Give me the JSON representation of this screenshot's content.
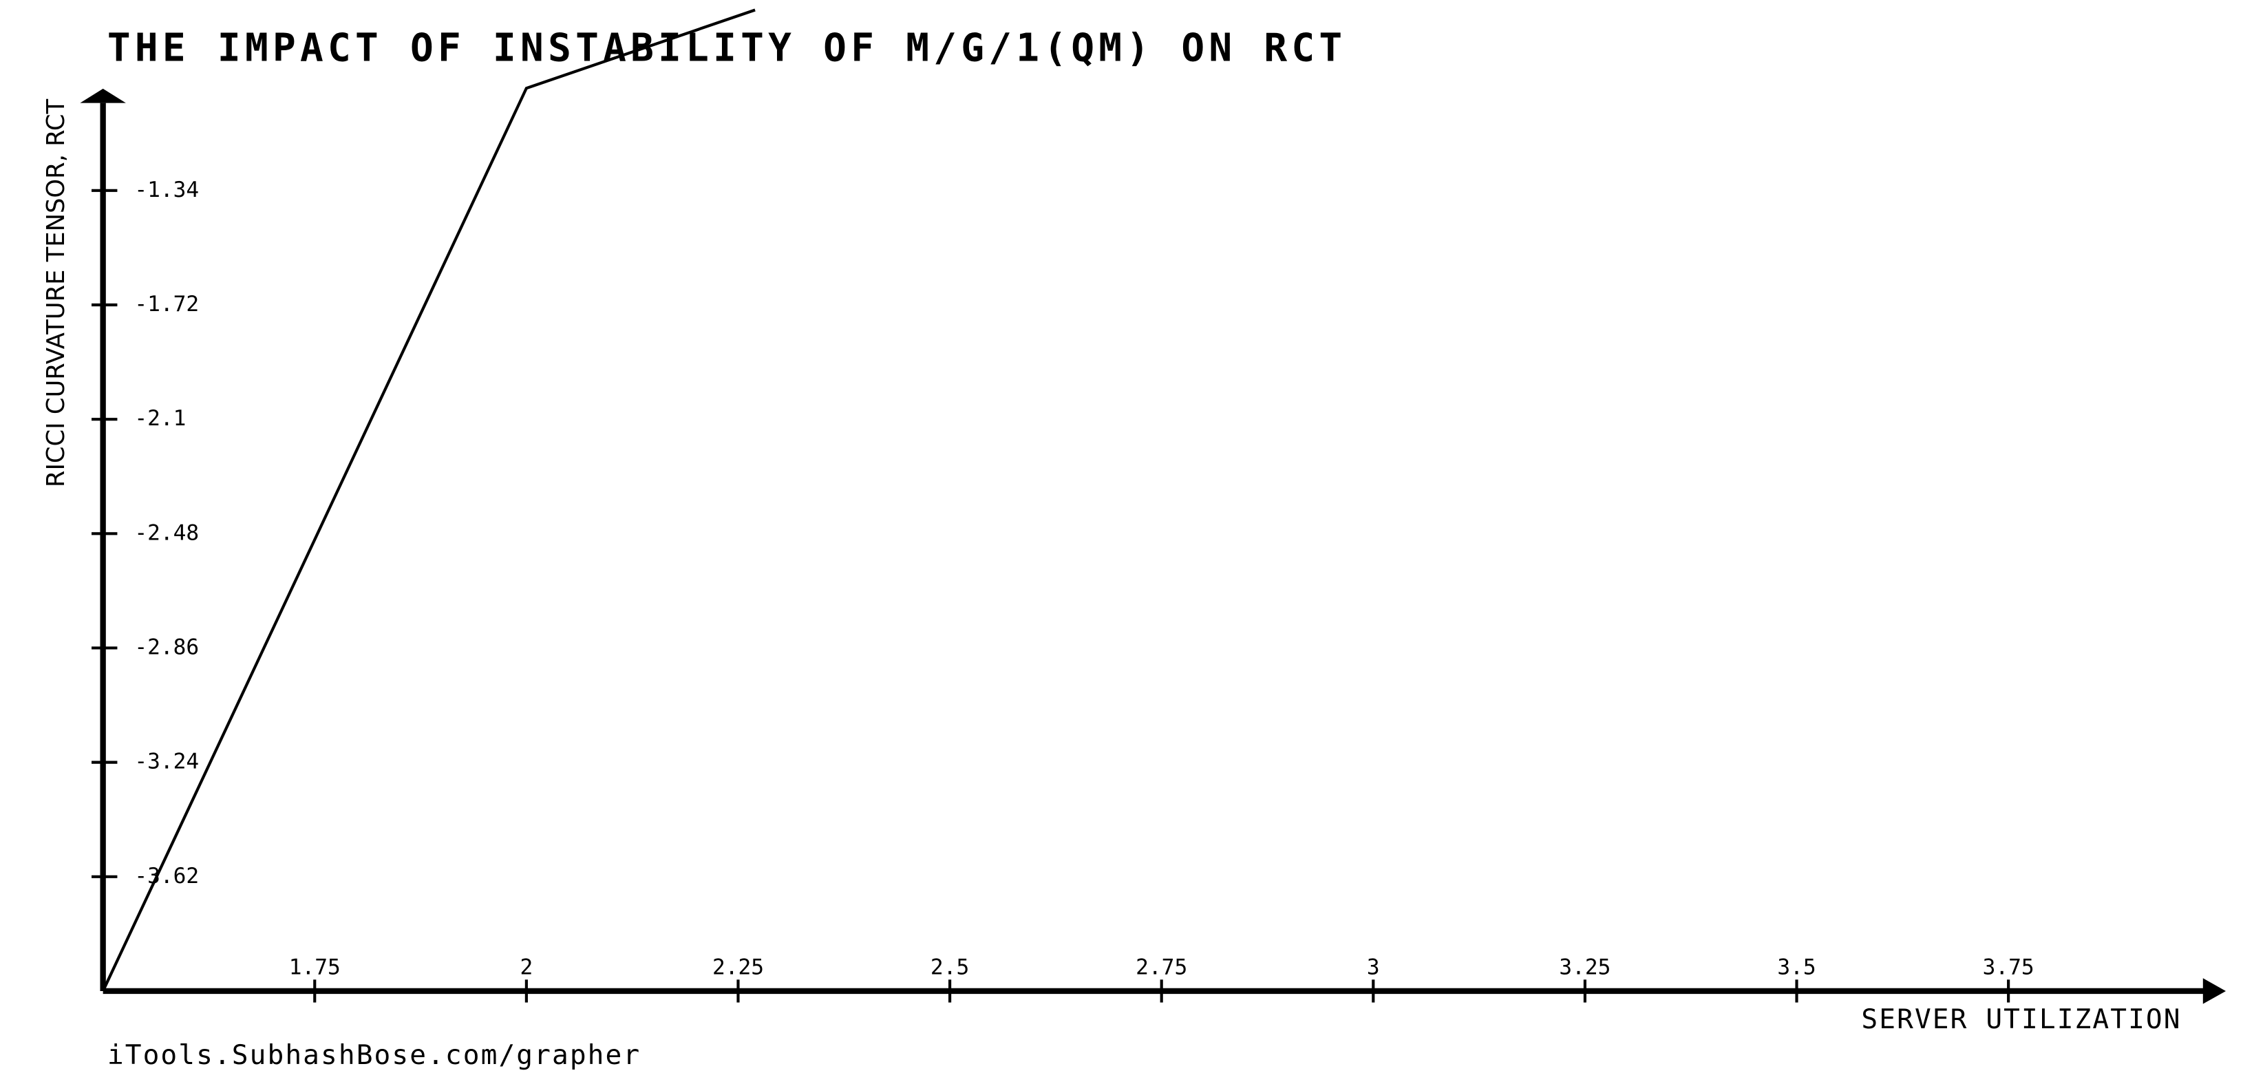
{
  "chart_data": {
    "type": "line",
    "title": "THE IMPACT OF INSTABILITY  OF M/G/1(QM) ON  RCT",
    "x_label": "SERVER UTILIZATION",
    "y_label": "RICCI CURVATURE TENSOR, RCT",
    "source": "iTools.SubhashBose.com/grapher",
    "x": [
      1.5,
      2,
      2.27
    ],
    "series": [
      {
        "name": "RCT",
        "color": "#000000",
        "values": [
          -4.0,
          -1.0,
          -0.74
        ]
      }
    ],
    "xlim": [
      1.5,
      4.0
    ],
    "xticks": [
      1.75,
      2,
      2.25,
      2.5,
      2.75,
      3,
      3.25,
      3.5,
      3.75
    ],
    "ylim": [
      -4.0,
      -1.03
    ],
    "yticks": [
      -1.34,
      -1.72,
      -2.1,
      -2.48,
      -2.86,
      -3.24,
      -3.62
    ]
  }
}
